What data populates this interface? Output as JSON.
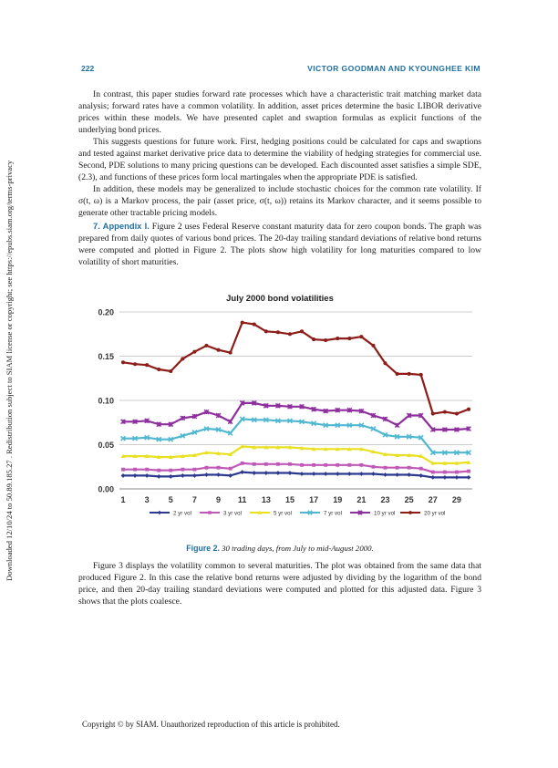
{
  "header": {
    "page_number": "222",
    "authors": "VICTOR GOODMAN AND KYOUNGHEE KIM"
  },
  "side_note": "Downloaded 12/10/24 to 50.89.185.27 . Redistribution subject to SIAM license or copyright; see https://epubs.siam.org/terms-privacy",
  "paragraphs_top": [
    "In contrast, this paper studies forward rate processes which have a characteristic trait matching market data analysis; forward rates have a common volatility. In addition, asset prices determine the basic LIBOR derivative prices within these models. We have presented caplet and swaption formulas as explicit functions of the underlying bond prices.",
    "This suggests questions for future work. First, hedging positions could be calculated for caps and swaptions and tested against market derivative price data to determine the viability of hedging strategies for commercial use. Second, PDE solutions to many pricing questions can be developed. Each discounted asset satisfies a simple SDE, (2.3), and functions of these prices form local martingales when the appropriate PDE is satisfied.",
    "In addition, these models may be generalized to include stochastic choices for the common rate volatility. If σ(t, ω) is a Markov process, the pair (asset price, σ(t, ω)) retains its Markov character, and it seems possible to generate other tractable pricing models."
  ],
  "section": {
    "title": "7. Appendix I.",
    "text": "Figure 2 uses Federal Reserve constant maturity data for zero coupon bonds. The graph was prepared from daily quotes of various bond prices. The 20-day trailing standard deviations of relative bond returns were computed and plotted in Figure 2. The plots show high volatility for long maturities compared to low volatility of short maturities."
  },
  "caption": {
    "label": "Figure 2.",
    "text": "30 trading days, from July to mid-August 2000."
  },
  "paragraph_after": "Figure 3 displays the volatility common to several maturities. The plot was obtained from the same data that produced Figure 2. In this case the relative bond returns were adjusted by dividing by the logarithm of the bond price, and then 20-day trailing standard deviations were computed and plotted for this adjusted data. Figure 3 shows that the plots coalesce.",
  "footer": "Copyright © by SIAM. Unauthorized reproduction of this article is prohibited.",
  "chart_data": {
    "type": "line",
    "title": "July 2000 bond volatilities",
    "xlabel": "",
    "ylabel": "",
    "ylim": [
      0,
      0.2
    ],
    "yticks": [
      "0.00",
      "0.05",
      "0.10",
      "0.15",
      "0.20"
    ],
    "x": [
      1,
      2,
      3,
      4,
      5,
      6,
      7,
      8,
      9,
      10,
      11,
      12,
      13,
      14,
      15,
      16,
      17,
      18,
      19,
      20,
      21,
      22,
      23,
      24,
      25,
      26,
      27,
      28,
      29,
      30
    ],
    "xticks": [
      "1",
      "3",
      "5",
      "7",
      "9",
      "11",
      "13",
      "15",
      "17",
      "19",
      "21",
      "23",
      "25",
      "27",
      "29"
    ],
    "grid": "horizontal",
    "legend_position": "bottom",
    "series": [
      {
        "name": "2 yr vol",
        "color": "#2b3a8f",
        "marker": "diamond",
        "values": [
          0.015,
          0.015,
          0.015,
          0.014,
          0.014,
          0.015,
          0.015,
          0.016,
          0.016,
          0.015,
          0.019,
          0.018,
          0.018,
          0.018,
          0.018,
          0.017,
          0.017,
          0.017,
          0.017,
          0.017,
          0.017,
          0.017,
          0.016,
          0.016,
          0.016,
          0.015,
          0.013,
          0.013,
          0.013,
          0.013
        ]
      },
      {
        "name": "3 yr vol",
        "color": "#c058b8",
        "marker": "square",
        "values": [
          0.022,
          0.022,
          0.022,
          0.021,
          0.021,
          0.022,
          0.022,
          0.024,
          0.024,
          0.023,
          0.029,
          0.028,
          0.028,
          0.028,
          0.028,
          0.027,
          0.027,
          0.027,
          0.027,
          0.027,
          0.027,
          0.025,
          0.024,
          0.024,
          0.024,
          0.023,
          0.019,
          0.019,
          0.019,
          0.02
        ]
      },
      {
        "name": "5 yr vol",
        "color": "#e8e020",
        "marker": "triangle",
        "values": [
          0.037,
          0.037,
          0.037,
          0.036,
          0.036,
          0.037,
          0.038,
          0.041,
          0.04,
          0.039,
          0.048,
          0.047,
          0.047,
          0.047,
          0.047,
          0.046,
          0.045,
          0.045,
          0.045,
          0.045,
          0.045,
          0.042,
          0.039,
          0.038,
          0.038,
          0.037,
          0.029,
          0.029,
          0.029,
          0.03
        ]
      },
      {
        "name": "7 yr vol",
        "color": "#4fb8d0",
        "marker": "x",
        "values": [
          0.057,
          0.057,
          0.058,
          0.056,
          0.056,
          0.06,
          0.064,
          0.068,
          0.067,
          0.063,
          0.079,
          0.078,
          0.078,
          0.077,
          0.077,
          0.076,
          0.074,
          0.072,
          0.072,
          0.072,
          0.072,
          0.068,
          0.061,
          0.059,
          0.059,
          0.058,
          0.041,
          0.041,
          0.041,
          0.041
        ]
      },
      {
        "name": "10 yr vol",
        "color": "#8e2f9e",
        "marker": "star",
        "values": [
          0.076,
          0.076,
          0.077,
          0.073,
          0.073,
          0.08,
          0.082,
          0.087,
          0.083,
          0.076,
          0.097,
          0.097,
          0.094,
          0.094,
          0.093,
          0.093,
          0.09,
          0.088,
          0.089,
          0.089,
          0.088,
          0.083,
          0.079,
          0.072,
          0.083,
          0.083,
          0.067,
          0.067,
          0.067,
          0.068
        ]
      },
      {
        "name": "20 yr vol",
        "color": "#8c1d18",
        "marker": "circle",
        "values": [
          0.143,
          0.141,
          0.14,
          0.135,
          0.133,
          0.147,
          0.155,
          0.162,
          0.157,
          0.154,
          0.188,
          0.186,
          0.178,
          0.177,
          0.175,
          0.178,
          0.169,
          0.168,
          0.17,
          0.17,
          0.172,
          0.162,
          0.142,
          0.13,
          0.13,
          0.129,
          0.085,
          0.087,
          0.085,
          0.09
        ]
      }
    ]
  }
}
